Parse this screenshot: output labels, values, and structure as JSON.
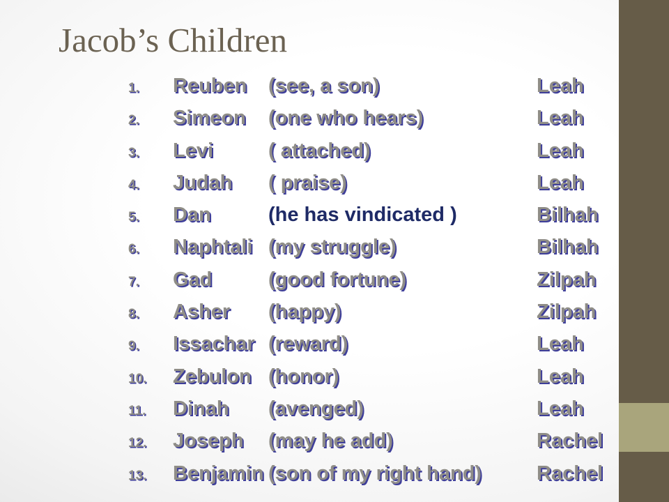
{
  "slide": {
    "title": "Jacob’s Children",
    "children": [
      {
        "num": "1.",
        "name": "Reuben",
        "meaning": "(see, a son)",
        "mother": "Leah",
        "highlighted": false
      },
      {
        "num": "2.",
        "name": "Simeon",
        "meaning": "(one who hears)",
        "mother": "Leah",
        "highlighted": false
      },
      {
        "num": "3.",
        "name": "Levi",
        "meaning": "( attached)",
        "mother": "Leah",
        "highlighted": false
      },
      {
        "num": "4.",
        "name": "Judah",
        "meaning": "( praise)",
        "mother": "Leah",
        "highlighted": false
      },
      {
        "num": "5.",
        "name": "Dan",
        "meaning": "(he has vindicated )",
        "mother": "Bilhah",
        "highlighted": true
      },
      {
        "num": "6.",
        "name": "Naphtali",
        "meaning": "(my struggle)",
        "mother": "Bilhah",
        "highlighted": false
      },
      {
        "num": "7.",
        "name": "Gad",
        "meaning": "(good fortune)",
        "mother": "Zilpah",
        "highlighted": false
      },
      {
        "num": "8.",
        "name": "Asher",
        "meaning": "(happy)",
        "mother": "Zilpah",
        "highlighted": false
      },
      {
        "num": "9.",
        "name": "Issachar",
        "meaning": "(reward)",
        "mother": "Leah",
        "highlighted": false
      },
      {
        "num": "10.",
        "name": "Zebulon",
        "meaning": "(honor)",
        "mother": "Leah",
        "highlighted": false
      },
      {
        "num": "11.",
        "name": "Dinah",
        "meaning": "(avenged)",
        "mother": "Leah",
        "highlighted": false
      },
      {
        "num": "12.",
        "name": "Joseph",
        "meaning": "(may he add)",
        "mother": "Rachel",
        "highlighted": false
      },
      {
        "num": "13.",
        "name": "Benjamin",
        "meaning": "(son of my right hand)",
        "mother": "Rachel",
        "highlighted": false
      }
    ]
  },
  "colors": {
    "title_text": "#6b6252",
    "list_text_fill": "#8f8d87",
    "list_text_shadow": "#3e3e9a",
    "highlight_text": "#1e2a66",
    "accent_bar": "#665c48",
    "accent_square": "#a9a57c",
    "background_center": "#ffffff",
    "background_edge": "#dcdcdc"
  }
}
